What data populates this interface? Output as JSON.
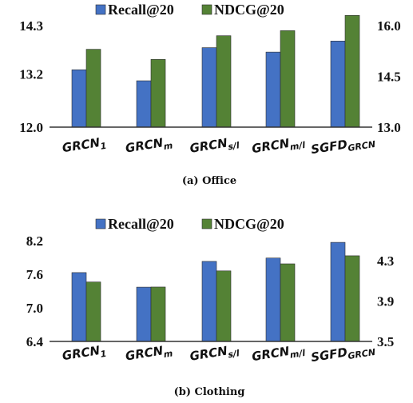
{
  "chart_data": [
    {
      "type": "bar",
      "caption": "(a) Office",
      "categories": [
        "GRCN1",
        "GRCNm",
        "GRCNs/l",
        "GRCNm/l",
        "SGFDGRCN"
      ],
      "category_labels": [
        {
          "main": "GRCN",
          "sub": "1"
        },
        {
          "main": "GRCN",
          "sub": "m"
        },
        {
          "main": "GRCN",
          "sub": "s/l"
        },
        {
          "main": "GRCN",
          "sub": "m/l"
        },
        {
          "main": "SGFD",
          "sub": "GRCN"
        }
      ],
      "series": [
        {
          "name": "Recall@20",
          "axis": "left",
          "color": "#4472C4",
          "values": [
            13.3,
            13.05,
            13.8,
            13.7,
            13.95
          ]
        },
        {
          "name": "NDCG@20",
          "axis": "right",
          "color": "#548235",
          "values": [
            15.3,
            15.0,
            15.7,
            15.85,
            16.3
          ]
        }
      ],
      "y_left": {
        "lim": [
          12.0,
          14.3
        ],
        "ticks": [
          "12.0",
          "13.2",
          "14.3"
        ],
        "tick_values": [
          12.0,
          13.2,
          14.3
        ]
      },
      "y_right": {
        "lim": [
          13.0,
          16.0
        ],
        "ticks": [
          "13.0",
          "14.5",
          "16.0"
        ],
        "tick_values": [
          13.0,
          14.5,
          16.0
        ]
      },
      "legend": "top"
    },
    {
      "type": "bar",
      "caption": "(b) Clothing",
      "categories": [
        "GRCN1",
        "GRCNm",
        "GRCNs/l",
        "GRCNm/l",
        "SGFDGRCN"
      ],
      "category_labels": [
        {
          "main": "GRCN",
          "sub": "1"
        },
        {
          "main": "GRCN",
          "sub": "m"
        },
        {
          "main": "GRCN",
          "sub": "s/l"
        },
        {
          "main": "GRCN",
          "sub": "m/l"
        },
        {
          "main": "SGFD",
          "sub": "GRCN"
        }
      ],
      "series": [
        {
          "name": "Recall@20",
          "axis": "left",
          "color": "#4472C4",
          "values": [
            7.63,
            7.37,
            7.83,
            7.89,
            8.17
          ]
        },
        {
          "name": "NDCG@20",
          "axis": "right",
          "color": "#548235",
          "values": [
            4.09,
            4.04,
            4.2,
            4.27,
            4.35
          ]
        }
      ],
      "y_left": {
        "lim": [
          6.4,
          8.2
        ],
        "ticks": [
          "6.4",
          "7.0",
          "7.6",
          "8.2"
        ],
        "tick_values": [
          6.4,
          7.0,
          7.6,
          8.2
        ]
      },
      "y_right": {
        "lim": [
          3.5,
          4.5
        ],
        "ticks": [
          "3.5",
          "3.9",
          "4.3"
        ],
        "tick_values": [
          3.5,
          3.9,
          4.3
        ]
      },
      "legend": "top"
    }
  ]
}
